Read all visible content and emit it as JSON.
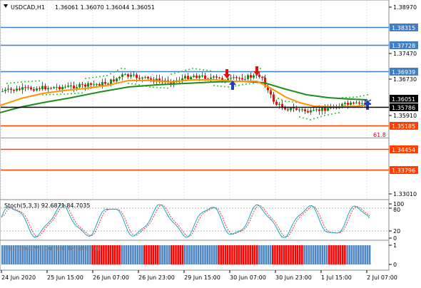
{
  "colors": {
    "blue_level": "#3f7fc6",
    "orange_level": "#ff4000",
    "fib_line": "#c0002a",
    "ma_fast": "#ff9500",
    "ma_slow": "#1a8f1a",
    "bull": "#1e8c1e",
    "bear": "#dc1414",
    "current_price_box": "#000000",
    "stoch_main": "#00a0c0",
    "stoch_signal": "#ff0000",
    "hist_blue": "#4d86c3",
    "hist_red": "#ff0000"
  },
  "header": {
    "menu_icon": "triangle-down-icon",
    "symbol": "USDCAD,H1",
    "ohlc": "1.36061 1.36070 1.36044 1.36051"
  },
  "price_axis": {
    "ticks": [
      "1.38970",
      "1.37470",
      "1.36730",
      "1.35910",
      "1.33010"
    ],
    "levels": [
      {
        "label": "1.38315",
        "kind": "blue",
        "price": 1.38315
      },
      {
        "label": "1.37728",
        "kind": "blue",
        "price": 1.37728
      },
      {
        "label": "1.36939",
        "kind": "blue",
        "price": 1.36939
      },
      {
        "label": "1.35786",
        "kind": "black",
        "price": 1.35786
      },
      {
        "label": "1.35185",
        "kind": "orange",
        "price": 1.35185
      },
      {
        "label": "1.34454",
        "kind": "orange",
        "price": 1.34454
      },
      {
        "label": "1.33796",
        "kind": "orange",
        "price": 1.33796
      }
    ],
    "current_price": "1.36051",
    "fib_label": "61.8"
  },
  "stochastic": {
    "title": "Stoch(5,3,3) 92.6871 84.7035",
    "levels": [
      "100",
      "80",
      "20",
      "0"
    ]
  },
  "flat_trend": {
    "title": "Flat Trend V3(Current Timeframe)",
    "levels": [
      "1",
      "0"
    ]
  },
  "time_axis": [
    "24 Jun 2020",
    "25 Jun 15:00",
    "26 Jun 07:00",
    "26 Jun 23:00",
    "29 Jun 15:00",
    "30 Jun 07:00",
    "30 Jun 23:00",
    "1 Jul 15:00",
    "2 Jul 07:00"
  ],
  "hist_pattern": "BBBBBBBBBBBBBBBBBBBBBBBBBBBBBBBBBBBBBBBBRRRRRRRRRRRRRBBBBBBBBBBRRRRRRRBBBBBRRRRRRBBBBBBBBBBBBBBBRRRRRRRRRRRRRRRRRRBBBBBBRRRRRRRRRRRRRRBBBBBBBBBBBRRRRRRRRBBBBBBBBBBB"
}
